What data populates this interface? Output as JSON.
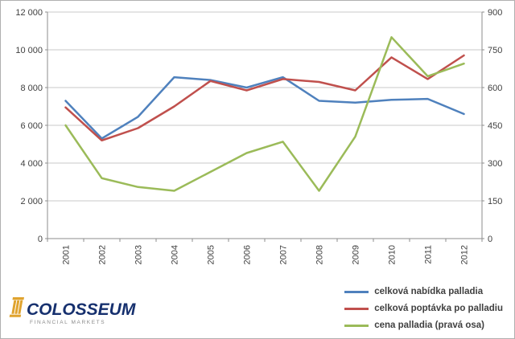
{
  "chart_data": {
    "type": "line",
    "categories": [
      "2001",
      "2002",
      "2003",
      "2004",
      "2005",
      "2006",
      "2007",
      "2008",
      "2009",
      "2010",
      "2011",
      "2012"
    ],
    "series": [
      {
        "name": "celková nabídka palladia",
        "color": "#4F81BD",
        "axis": "left",
        "values": [
          7300,
          5300,
          6450,
          8550,
          8400,
          8000,
          8550,
          7300,
          7200,
          7350,
          7400,
          6600
        ]
      },
      {
        "name": "celková poptávka po palladiu",
        "color": "#C0504D",
        "axis": "left",
        "values": [
          6950,
          5200,
          5850,
          7000,
          8350,
          7850,
          8450,
          8300,
          7850,
          9600,
          8450,
          9700
        ]
      },
      {
        "name": "cena palladia (pravá osa)",
        "color": "#9BBB59",
        "axis": "right",
        "values": [
          450,
          240,
          205,
          190,
          265,
          340,
          385,
          190,
          405,
          800,
          645,
          695
        ]
      }
    ],
    "left_axis": {
      "min": 0,
      "max": 12000,
      "step": 2000,
      "ticks": [
        "12 000",
        "10 000",
        "8 000",
        "6 000",
        "4 000",
        "2 000",
        "0"
      ]
    },
    "right_axis": {
      "min": 0,
      "max": 900,
      "step": 150,
      "ticks": [
        "900",
        "750",
        "600",
        "450",
        "300",
        "150",
        "0"
      ]
    },
    "grid": true,
    "legend_position": "bottom-right",
    "title": "",
    "xlabel": "",
    "ylabel": ""
  },
  "logo": {
    "name": "COLOSSEUM",
    "subtitle": "FINANCIAL MARKETS",
    "navy": "#16306e",
    "gold": "#e0a32e"
  }
}
